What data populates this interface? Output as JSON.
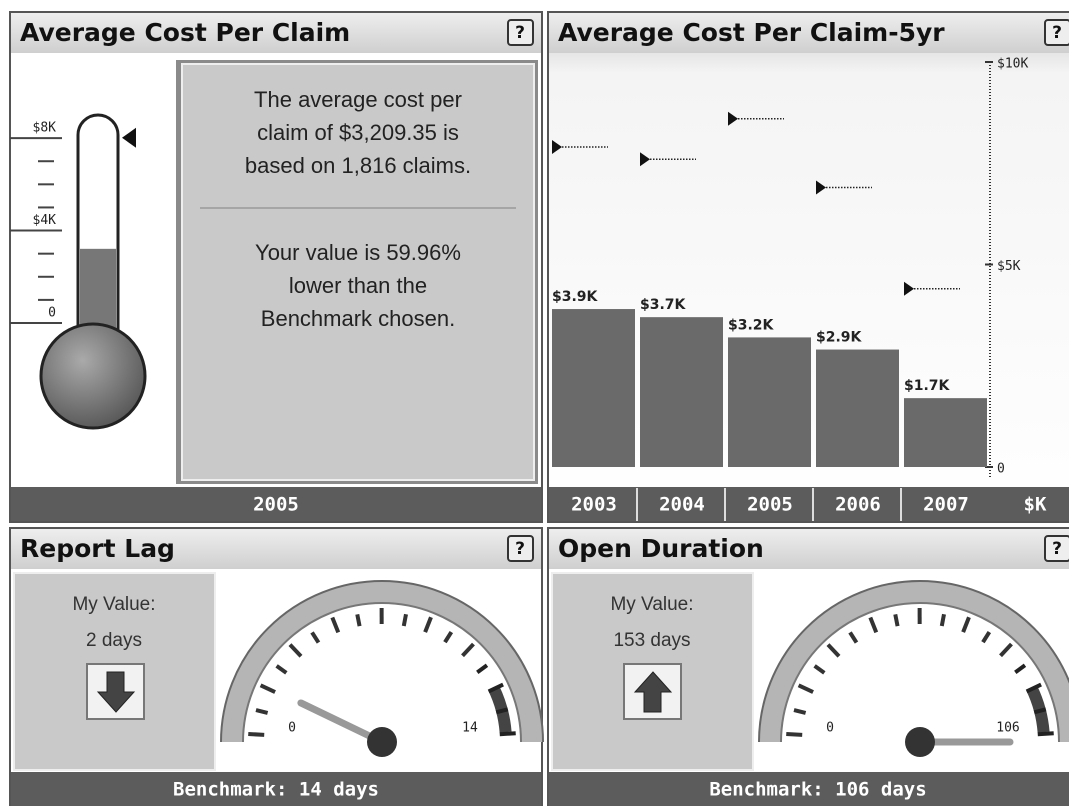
{
  "panels": [
    {
      "title": "Average Cost Per Claim",
      "help": "?",
      "message": [
        [
          "The average cost per",
          "claim of $3,209.35 is",
          "based on 1,816 claims."
        ],
        [
          "Your value is 59.96%",
          "lower than the",
          "Benchmark chosen."
        ]
      ],
      "footer": "2005"
    },
    {
      "title": "Average Cost Per Claim-5yr",
      "help": "?",
      "footer_unit": "$K"
    },
    {
      "title": "Report Lag",
      "help": "?",
      "label": "My Value:",
      "value": "2 days",
      "footer": "Benchmark: 14 days"
    },
    {
      "title": "Open Duration",
      "help": "?",
      "label": "My Value:",
      "value": "153 days",
      "footer": "Benchmark: 106 days"
    }
  ],
  "chart_data": [
    {
      "type": "thermometer",
      "value": 3209.35,
      "benchmark": 8015,
      "ylim": [
        0,
        9000
      ],
      "yticks": [
        0,
        {
          "value": 4000,
          "label": "$4K"
        },
        {
          "value": 8000,
          "label": "$8K"
        }
      ],
      "minor_yticks": [
        1000,
        2000,
        3000,
        5000,
        6000,
        7000
      ],
      "color": "#777777"
    },
    {
      "type": "bar",
      "categories": [
        "2003",
        "2004",
        "2005",
        "2006",
        "2007"
      ],
      "values": [
        3900,
        3700,
        3200,
        2900,
        1700
      ],
      "value_labels": [
        "$3.9K",
        "$3.7K",
        "$3.2K",
        "$2.9K",
        "$1.7K"
      ],
      "benchmarks": [
        7900,
        7600,
        8600,
        6900,
        4400
      ],
      "ylim": [
        0,
        10000
      ],
      "yticks": [
        0,
        {
          "value": 5000,
          "label": "$5K"
        },
        {
          "value": 10000,
          "label": "$10K"
        }
      ],
      "color": "#6a6a6a"
    },
    {
      "type": "gauge",
      "value": 2,
      "ylim": [
        0,
        14
      ],
      "yticks": [
        0,
        14
      ]
    },
    {
      "type": "gauge",
      "value": 153,
      "ylim": [
        0,
        106
      ],
      "yticks": [
        0,
        106
      ]
    }
  ]
}
